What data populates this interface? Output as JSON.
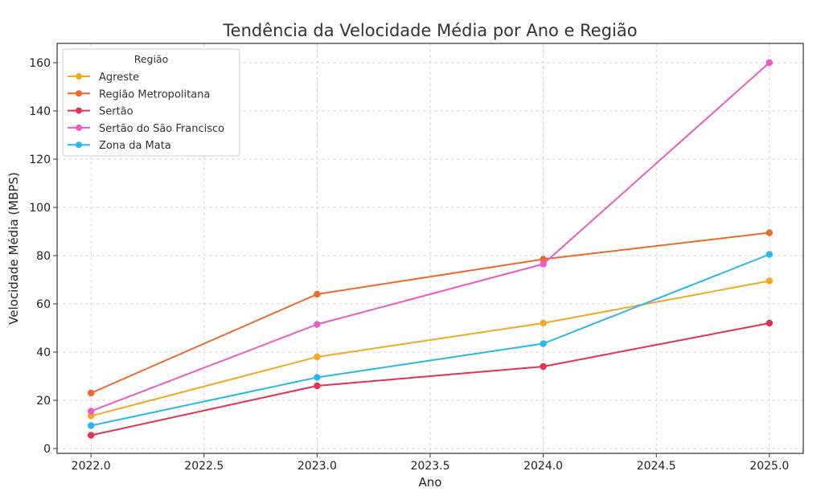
{
  "chart_data": {
    "type": "line",
    "title": "Tendência da Velocidade Média por Ano e Região",
    "xlabel": "Ano",
    "ylabel": "Velocidade Média (MBPS)",
    "x": [
      2022,
      2023,
      2024,
      2025
    ],
    "xlim": [
      2021.85,
      2025.15
    ],
    "ylim": [
      -2,
      168
    ],
    "xticks": [
      "2022.0",
      "2022.5",
      "2023.0",
      "2023.5",
      "2024.0",
      "2024.5",
      "2025.0"
    ],
    "yticks": [
      "0",
      "20",
      "40",
      "60",
      "80",
      "100",
      "120",
      "140",
      "160"
    ],
    "grid": true,
    "legend": {
      "title": "Região",
      "placement": "top-left"
    },
    "series": [
      {
        "name": "Agreste",
        "color": "#f5a623",
        "values": [
          13.5,
          38,
          52,
          69.5
        ]
      },
      {
        "name": "Região Metropolitana",
        "color": "#ee6a2a",
        "values": [
          23,
          64,
          78.5,
          89.5
        ]
      },
      {
        "name": "Sertão",
        "color": "#e8304f",
        "values": [
          5.5,
          26,
          34,
          52
        ]
      },
      {
        "name": "Sertão do São Francisco",
        "color": "#f159c6",
        "values": [
          15.5,
          51.5,
          76.5,
          160
        ]
      },
      {
        "name": "Zona da Mata",
        "color": "#2ab6ee",
        "values": [
          9.5,
          29.5,
          43.5,
          80.5
        ]
      }
    ]
  }
}
